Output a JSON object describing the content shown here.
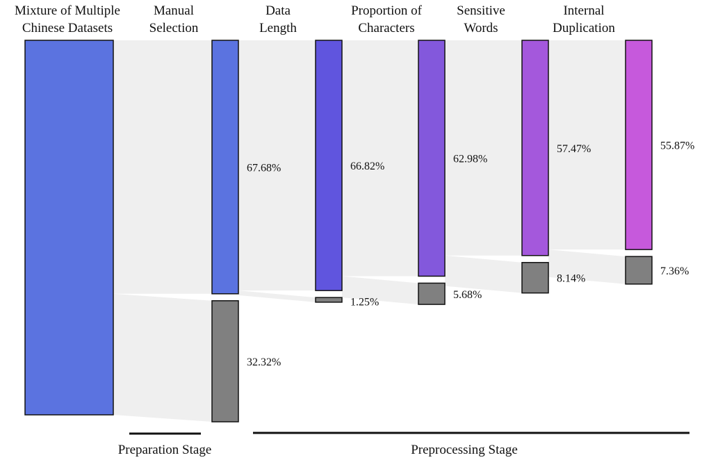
{
  "chart_data": {
    "type": "sankey",
    "columns": [
      {
        "label_lines": [
          "Mixture of Multiple",
          "Chinese Datasets"
        ],
        "kept": 100,
        "kept_label": "",
        "removed": 0,
        "removed_label": "",
        "color": "#5b73e0"
      },
      {
        "label_lines": [
          "Manual",
          "Selection"
        ],
        "kept": 67.68,
        "kept_label": "67.68%",
        "removed": 32.32,
        "removed_label": "32.32%",
        "color": "#5b73e0"
      },
      {
        "label_lines": [
          "Data",
          "Length"
        ],
        "kept": 66.82,
        "kept_label": "66.82%",
        "removed": 1.25,
        "removed_label": "1.25%",
        "color": "#6055de"
      },
      {
        "label_lines": [
          "Proportion of",
          "Characters"
        ],
        "kept": 62.98,
        "kept_label": "62.98%",
        "removed": 5.68,
        "removed_label": "5.68%",
        "color": "#8358dc"
      },
      {
        "label_lines": [
          "Sensitive",
          "Words"
        ],
        "kept": 57.47,
        "kept_label": "57.47%",
        "removed": 8.14,
        "removed_label": "8.14%",
        "color": "#a458dc"
      },
      {
        "label_lines": [
          "Internal",
          "Duplication"
        ],
        "kept": 55.87,
        "kept_label": "55.87%",
        "removed": 7.36,
        "removed_label": "7.36%",
        "color": "#c659dc"
      }
    ],
    "removed_color": "#808080",
    "flow_color": "#efefef",
    "stages": [
      {
        "label": "Preparation Stage",
        "from_col": 1,
        "to_col": 1
      },
      {
        "label": "Preprocessing Stage",
        "from_col": 2,
        "to_col": 5
      }
    ]
  }
}
